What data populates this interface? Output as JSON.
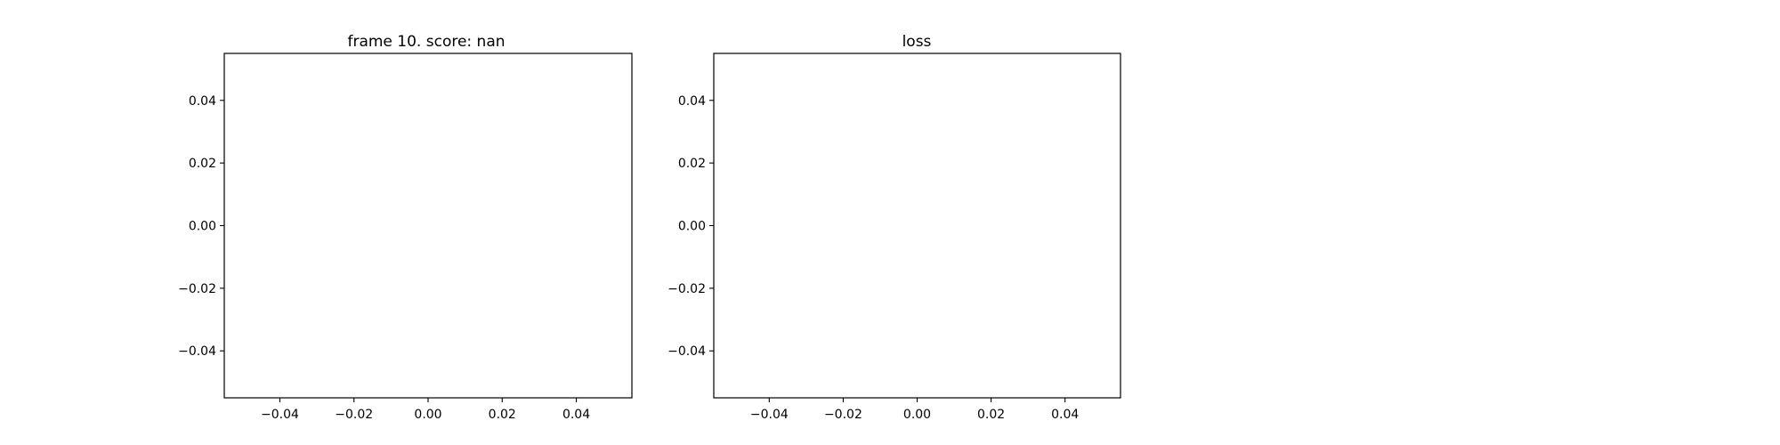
{
  "chart_data": [
    {
      "type": "line",
      "title": "frame 10. score: nan",
      "xlabel": "",
      "ylabel": "",
      "series": [],
      "xlim": [
        -0.055,
        0.055
      ],
      "ylim": [
        -0.055,
        0.055
      ],
      "x_ticks": [
        -0.04,
        -0.02,
        0.0,
        0.02,
        0.04
      ],
      "y_ticks": [
        -0.04,
        -0.02,
        0.0,
        0.02,
        0.04
      ],
      "x_tick_labels": [
        "−0.04",
        "−0.02",
        "0.00",
        "0.02",
        "0.04"
      ],
      "y_tick_labels": [
        "−0.04",
        "−0.02",
        "0.00",
        "0.02",
        "0.04"
      ],
      "grid": false
    },
    {
      "type": "line",
      "title": "loss",
      "xlabel": "",
      "ylabel": "",
      "series": [],
      "xlim": [
        -0.055,
        0.055
      ],
      "ylim": [
        -0.055,
        0.055
      ],
      "x_ticks": [
        -0.04,
        -0.02,
        0.0,
        0.02,
        0.04
      ],
      "y_ticks": [
        -0.04,
        -0.02,
        0.0,
        0.02,
        0.04
      ],
      "x_tick_labels": [
        "−0.04",
        "−0.02",
        "0.00",
        "0.02",
        "0.04"
      ],
      "y_tick_labels": [
        "−0.04",
        "−0.02",
        "0.00",
        "0.02",
        "0.04"
      ],
      "grid": false
    }
  ]
}
